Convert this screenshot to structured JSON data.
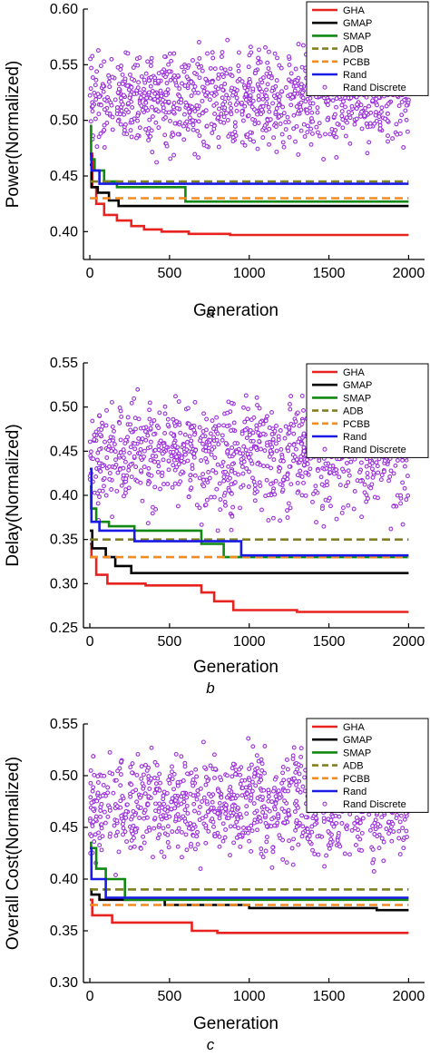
{
  "chart_data": [
    {
      "type": "line",
      "panel_label": "a",
      "xlabel": "Generation",
      "ylabel": "Power(Normalized)",
      "xlim": [
        -40,
        2100
      ],
      "ylim": [
        0.375,
        0.6
      ],
      "xticks": [
        0,
        500,
        1000,
        1500,
        2000
      ],
      "yticks": [
        0.4,
        0.45,
        0.5,
        0.55,
        0.6
      ],
      "ytick_labels": [
        "0.40",
        "0.45",
        "0.50",
        "0.55",
        "0.60"
      ],
      "legend_position": "top-right",
      "scatter": {
        "name": "Rand Discrete",
        "color": "#9b30d9",
        "n_points": 1000,
        "x_range": [
          0,
          2000
        ],
        "y_range": [
          0.455,
          0.58
        ],
        "y_center": 0.52
      },
      "series": [
        {
          "name": "GHA",
          "color": "#e8231f",
          "dash": "solid",
          "x": [
            0,
            15,
            15,
            40,
            40,
            90,
            90,
            170,
            170,
            260,
            260,
            340,
            340,
            450,
            450,
            620,
            620,
            880,
            880,
            2000
          ],
          "y": [
            0.47,
            0.47,
            0.44,
            0.44,
            0.425,
            0.425,
            0.415,
            0.415,
            0.41,
            0.41,
            0.405,
            0.405,
            0.402,
            0.402,
            0.4,
            0.4,
            0.398,
            0.398,
            0.397,
            0.397
          ]
        },
        {
          "name": "GMAP",
          "color": "#000000",
          "dash": "solid",
          "x": [
            0,
            10,
            10,
            50,
            50,
            120,
            120,
            180,
            180,
            2000
          ],
          "y": [
            0.46,
            0.46,
            0.44,
            0.44,
            0.435,
            0.435,
            0.428,
            0.428,
            0.423,
            0.423
          ]
        },
        {
          "name": "SMAP",
          "color": "#118811",
          "dash": "solid",
          "x": [
            0,
            8,
            8,
            30,
            30,
            90,
            90,
            170,
            170,
            600,
            600,
            2000
          ],
          "y": [
            0.495,
            0.495,
            0.465,
            0.465,
            0.455,
            0.455,
            0.445,
            0.445,
            0.44,
            0.44,
            0.427,
            0.427
          ]
        },
        {
          "name": "ADB",
          "color": "#808020",
          "dash": "dashed",
          "x": [
            0,
            2000
          ],
          "y": [
            0.445,
            0.445
          ]
        },
        {
          "name": "PCBB",
          "color": "#f58a1f",
          "dash": "dashed",
          "x": [
            0,
            2000
          ],
          "y": [
            0.43,
            0.43
          ]
        },
        {
          "name": "Rand",
          "color": "#1a1ae6",
          "dash": "solid",
          "x": [
            0,
            10,
            10,
            60,
            60,
            2000
          ],
          "y": [
            0.47,
            0.47,
            0.455,
            0.455,
            0.443,
            0.443
          ]
        }
      ]
    },
    {
      "type": "line",
      "panel_label": "b",
      "xlabel": "Generation",
      "ylabel": "Delay(Normalized)",
      "xlim": [
        -40,
        2100
      ],
      "ylim": [
        0.25,
        0.55
      ],
      "xticks": [
        0,
        500,
        1000,
        1500,
        2000
      ],
      "yticks": [
        0.25,
        0.3,
        0.35,
        0.4,
        0.45,
        0.5,
        0.55
      ],
      "ytick_labels": [
        "0.25",
        "0.30",
        "0.35",
        "0.40",
        "0.45",
        "0.50",
        "0.55"
      ],
      "legend_position": "top-right",
      "scatter": {
        "name": "Rand Discrete",
        "color": "#9b30d9",
        "n_points": 1000,
        "x_range": [
          0,
          2000
        ],
        "y_range": [
          0.355,
          0.525
        ],
        "y_center": 0.45
      },
      "series": [
        {
          "name": "GHA",
          "color": "#e8231f",
          "dash": "solid",
          "x": [
            0,
            10,
            10,
            40,
            40,
            110,
            110,
            350,
            350,
            700,
            700,
            780,
            780,
            900,
            900,
            1300,
            1300,
            2000
          ],
          "y": [
            0.345,
            0.345,
            0.33,
            0.33,
            0.31,
            0.31,
            0.3,
            0.3,
            0.298,
            0.298,
            0.29,
            0.29,
            0.28,
            0.28,
            0.27,
            0.27,
            0.268,
            0.268
          ]
        },
        {
          "name": "GMAP",
          "color": "#000000",
          "dash": "solid",
          "x": [
            0,
            15,
            15,
            100,
            100,
            160,
            160,
            260,
            260,
            2000
          ],
          "y": [
            0.36,
            0.36,
            0.34,
            0.34,
            0.33,
            0.33,
            0.32,
            0.32,
            0.312,
            0.312
          ]
        },
        {
          "name": "SMAP",
          "color": "#118811",
          "dash": "solid",
          "x": [
            0,
            8,
            8,
            40,
            40,
            120,
            120,
            280,
            280,
            700,
            700,
            840,
            840,
            2000
          ],
          "y": [
            0.41,
            0.41,
            0.385,
            0.385,
            0.37,
            0.37,
            0.365,
            0.365,
            0.36,
            0.36,
            0.345,
            0.345,
            0.33,
            0.33
          ]
        },
        {
          "name": "ADB",
          "color": "#808020",
          "dash": "dashed",
          "x": [
            0,
            2000
          ],
          "y": [
            0.35,
            0.35
          ]
        },
        {
          "name": "PCBB",
          "color": "#f58a1f",
          "dash": "dashed",
          "x": [
            0,
            2000
          ],
          "y": [
            0.33,
            0.33
          ]
        },
        {
          "name": "Rand",
          "color": "#1a1ae6",
          "dash": "solid",
          "x": [
            0,
            10,
            10,
            60,
            60,
            280,
            280,
            950,
            950,
            2000
          ],
          "y": [
            0.43,
            0.43,
            0.37,
            0.37,
            0.36,
            0.36,
            0.348,
            0.348,
            0.332,
            0.332
          ]
        }
      ]
    },
    {
      "type": "line",
      "panel_label": "c",
      "xlabel": "Generation",
      "ylabel": "Overall Cost(Normalized)",
      "xlim": [
        -40,
        2100
      ],
      "ylim": [
        0.3,
        0.55
      ],
      "xticks": [
        0,
        500,
        1000,
        1500,
        2000
      ],
      "yticks": [
        0.3,
        0.35,
        0.4,
        0.45,
        0.5,
        0.55
      ],
      "ytick_labels": [
        "0.30",
        "0.35",
        "0.40",
        "0.45",
        "0.50",
        "0.55"
      ],
      "legend_position": "top-right",
      "scatter": {
        "name": "Rand Discrete",
        "color": "#9b30d9",
        "n_points": 1000,
        "x_range": [
          0,
          2000
        ],
        "y_range": [
          0.4,
          0.545
        ],
        "y_center": 0.47
      },
      "series": [
        {
          "name": "GHA",
          "color": "#e8231f",
          "dash": "solid",
          "x": [
            0,
            15,
            15,
            140,
            140,
            640,
            640,
            800,
            800,
            2000
          ],
          "y": [
            0.38,
            0.38,
            0.365,
            0.365,
            0.358,
            0.358,
            0.35,
            0.35,
            0.348,
            0.348
          ]
        },
        {
          "name": "GMAP",
          "color": "#000000",
          "dash": "solid",
          "x": [
            0,
            10,
            10,
            60,
            60,
            470,
            470,
            1000,
            1000,
            1800,
            1800,
            2000
          ],
          "y": [
            0.39,
            0.39,
            0.385,
            0.385,
            0.38,
            0.38,
            0.375,
            0.375,
            0.372,
            0.372,
            0.37,
            0.37
          ]
        },
        {
          "name": "SMAP",
          "color": "#118811",
          "dash": "solid",
          "x": [
            0,
            8,
            8,
            40,
            40,
            100,
            100,
            220,
            220,
            2000
          ],
          "y": [
            0.435,
            0.435,
            0.43,
            0.43,
            0.41,
            0.41,
            0.4,
            0.4,
            0.38,
            0.38
          ]
        },
        {
          "name": "ADB",
          "color": "#808020",
          "dash": "dashed",
          "x": [
            0,
            2000
          ],
          "y": [
            0.39,
            0.39
          ]
        },
        {
          "name": "PCBB",
          "color": "#f58a1f",
          "dash": "dashed",
          "x": [
            0,
            2000
          ],
          "y": [
            0.375,
            0.375
          ]
        },
        {
          "name": "Rand",
          "color": "#1a1ae6",
          "dash": "solid",
          "x": [
            0,
            10,
            10,
            100,
            100,
            2000
          ],
          "y": [
            0.43,
            0.43,
            0.4,
            0.4,
            0.382,
            0.382
          ]
        }
      ]
    }
  ]
}
